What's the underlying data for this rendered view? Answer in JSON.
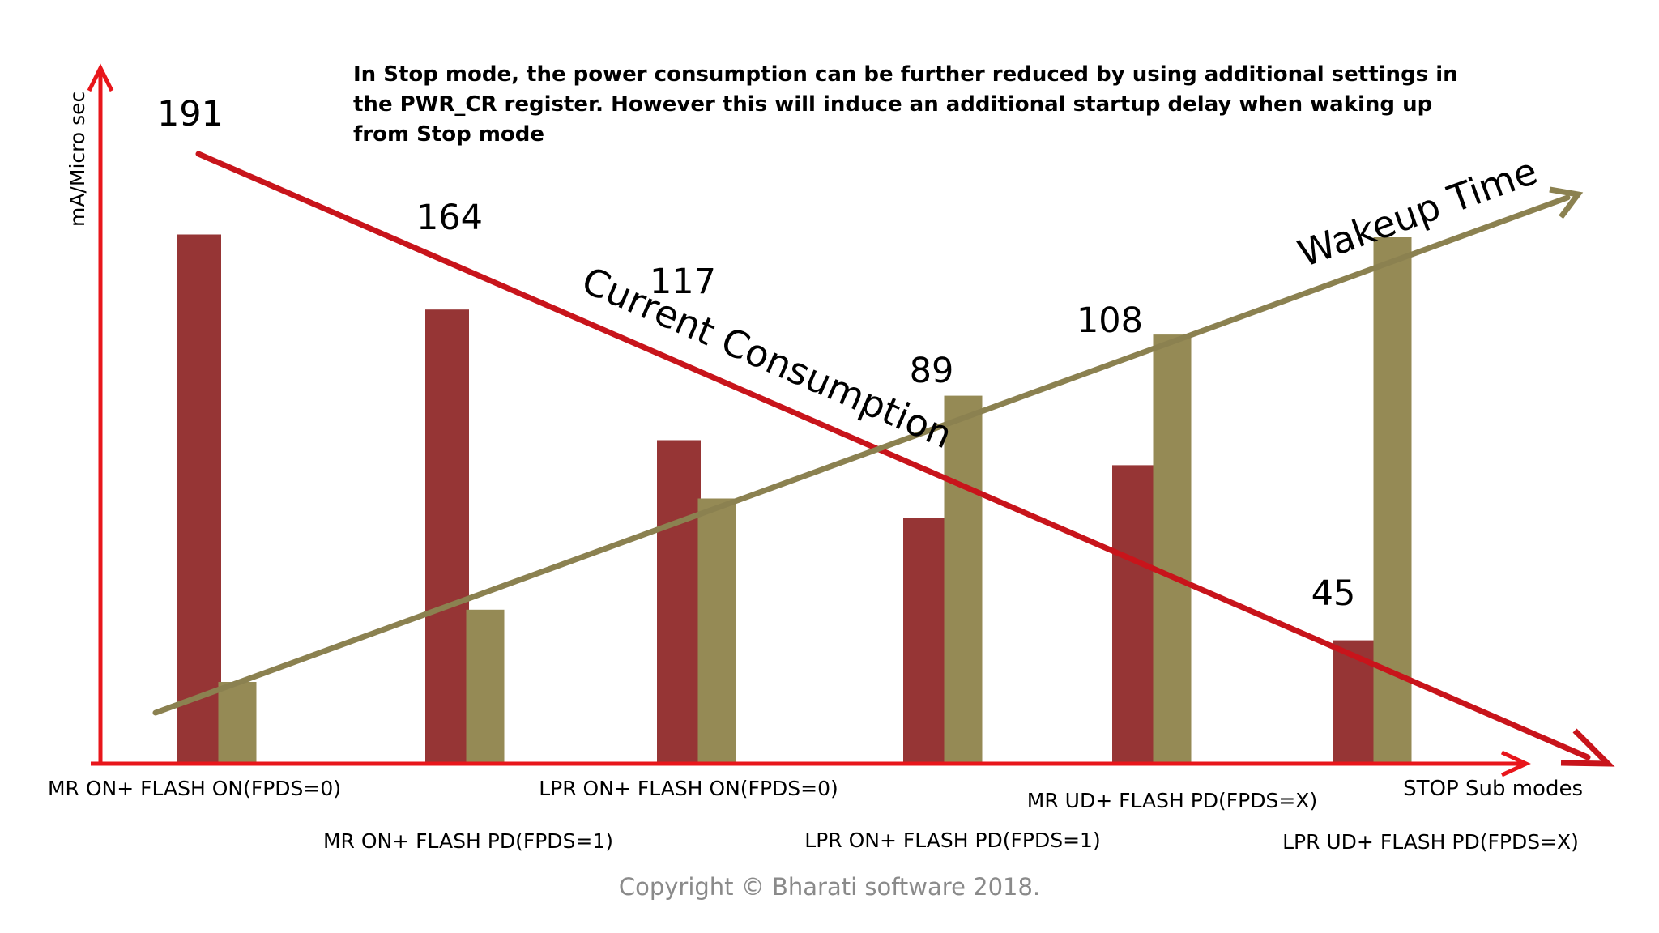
{
  "note": {
    "lines": [
      "In Stop mode, the power consumption can be further reduced by using additional settings in",
      "the PWR_CR register. However this will induce an additional startup delay when waking up",
      "from Stop mode"
    ]
  },
  "copyright": "Copyright © Bharati software 2018.",
  "colors": {
    "axis": "#e8161b",
    "current": "#963535",
    "wakeup": "#958a55",
    "current_trend": "#c8141b",
    "wakeup_trend": "#8b8150"
  },
  "chart_data": {
    "type": "bar",
    "title": "",
    "ylabel": "mA/Micro sec",
    "xlabel": "STOP Sub modes",
    "ylim": [
      0,
      220
    ],
    "grid": false,
    "categories": [
      "MR ON+ FLASH ON(FPDS=0)",
      "MR ON+ FLASH PD(FPDS=1)",
      "LPR ON+ FLASH ON(FPDS=0)",
      "LPR ON+ FLASH PD(FPDS=1)",
      "MR UD+ FLASH PD(FPDS=X)",
      "LPR UD+ FLASH PD(FPDS=X)"
    ],
    "series": [
      {
        "name": "",
        "values": [
          191,
          164,
          117,
          89,
          108,
          45
        ],
        "color_key": "current"
      },
      {
        "name": "",
        "values": [
          30,
          56,
          96,
          133,
          155,
          190
        ],
        "color_key": "wakeup"
      }
    ],
    "value_labels": [
      "191",
      "164",
      "117",
      "89",
      "108",
      "45"
    ],
    "trend_labels": {
      "current": "Current Consumption",
      "wakeup": "Wakeup Time"
    }
  }
}
